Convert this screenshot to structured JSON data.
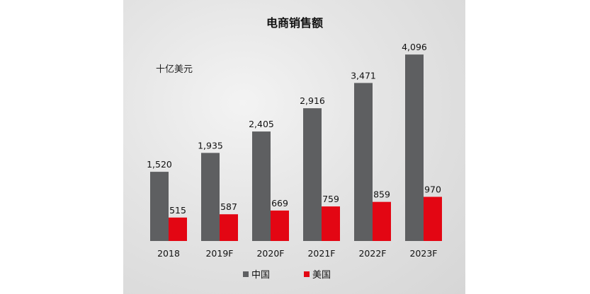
{
  "chart_data": {
    "type": "bar",
    "title": "电商销售额",
    "unit_label": "十亿美元",
    "categories": [
      "2018",
      "2019F",
      "2020F",
      "2021F",
      "2022F",
      "2023F"
    ],
    "series": [
      {
        "name": "中国",
        "color": "#5e5f61",
        "values": [
          1520,
          1935,
          2405,
          2916,
          3471,
          4096
        ],
        "labels": [
          "1,520",
          "1,935",
          "2,405",
          "2,916",
          "3,471",
          "4,096"
        ]
      },
      {
        "name": "美国",
        "color": "#e30613",
        "values": [
          515,
          587,
          669,
          759,
          859,
          970
        ],
        "labels": [
          "515",
          "587",
          "669",
          "759",
          "859",
          "970"
        ]
      }
    ],
    "ylim": [
      0,
      4300
    ],
    "grid": false,
    "legend_position": "bottom"
  }
}
